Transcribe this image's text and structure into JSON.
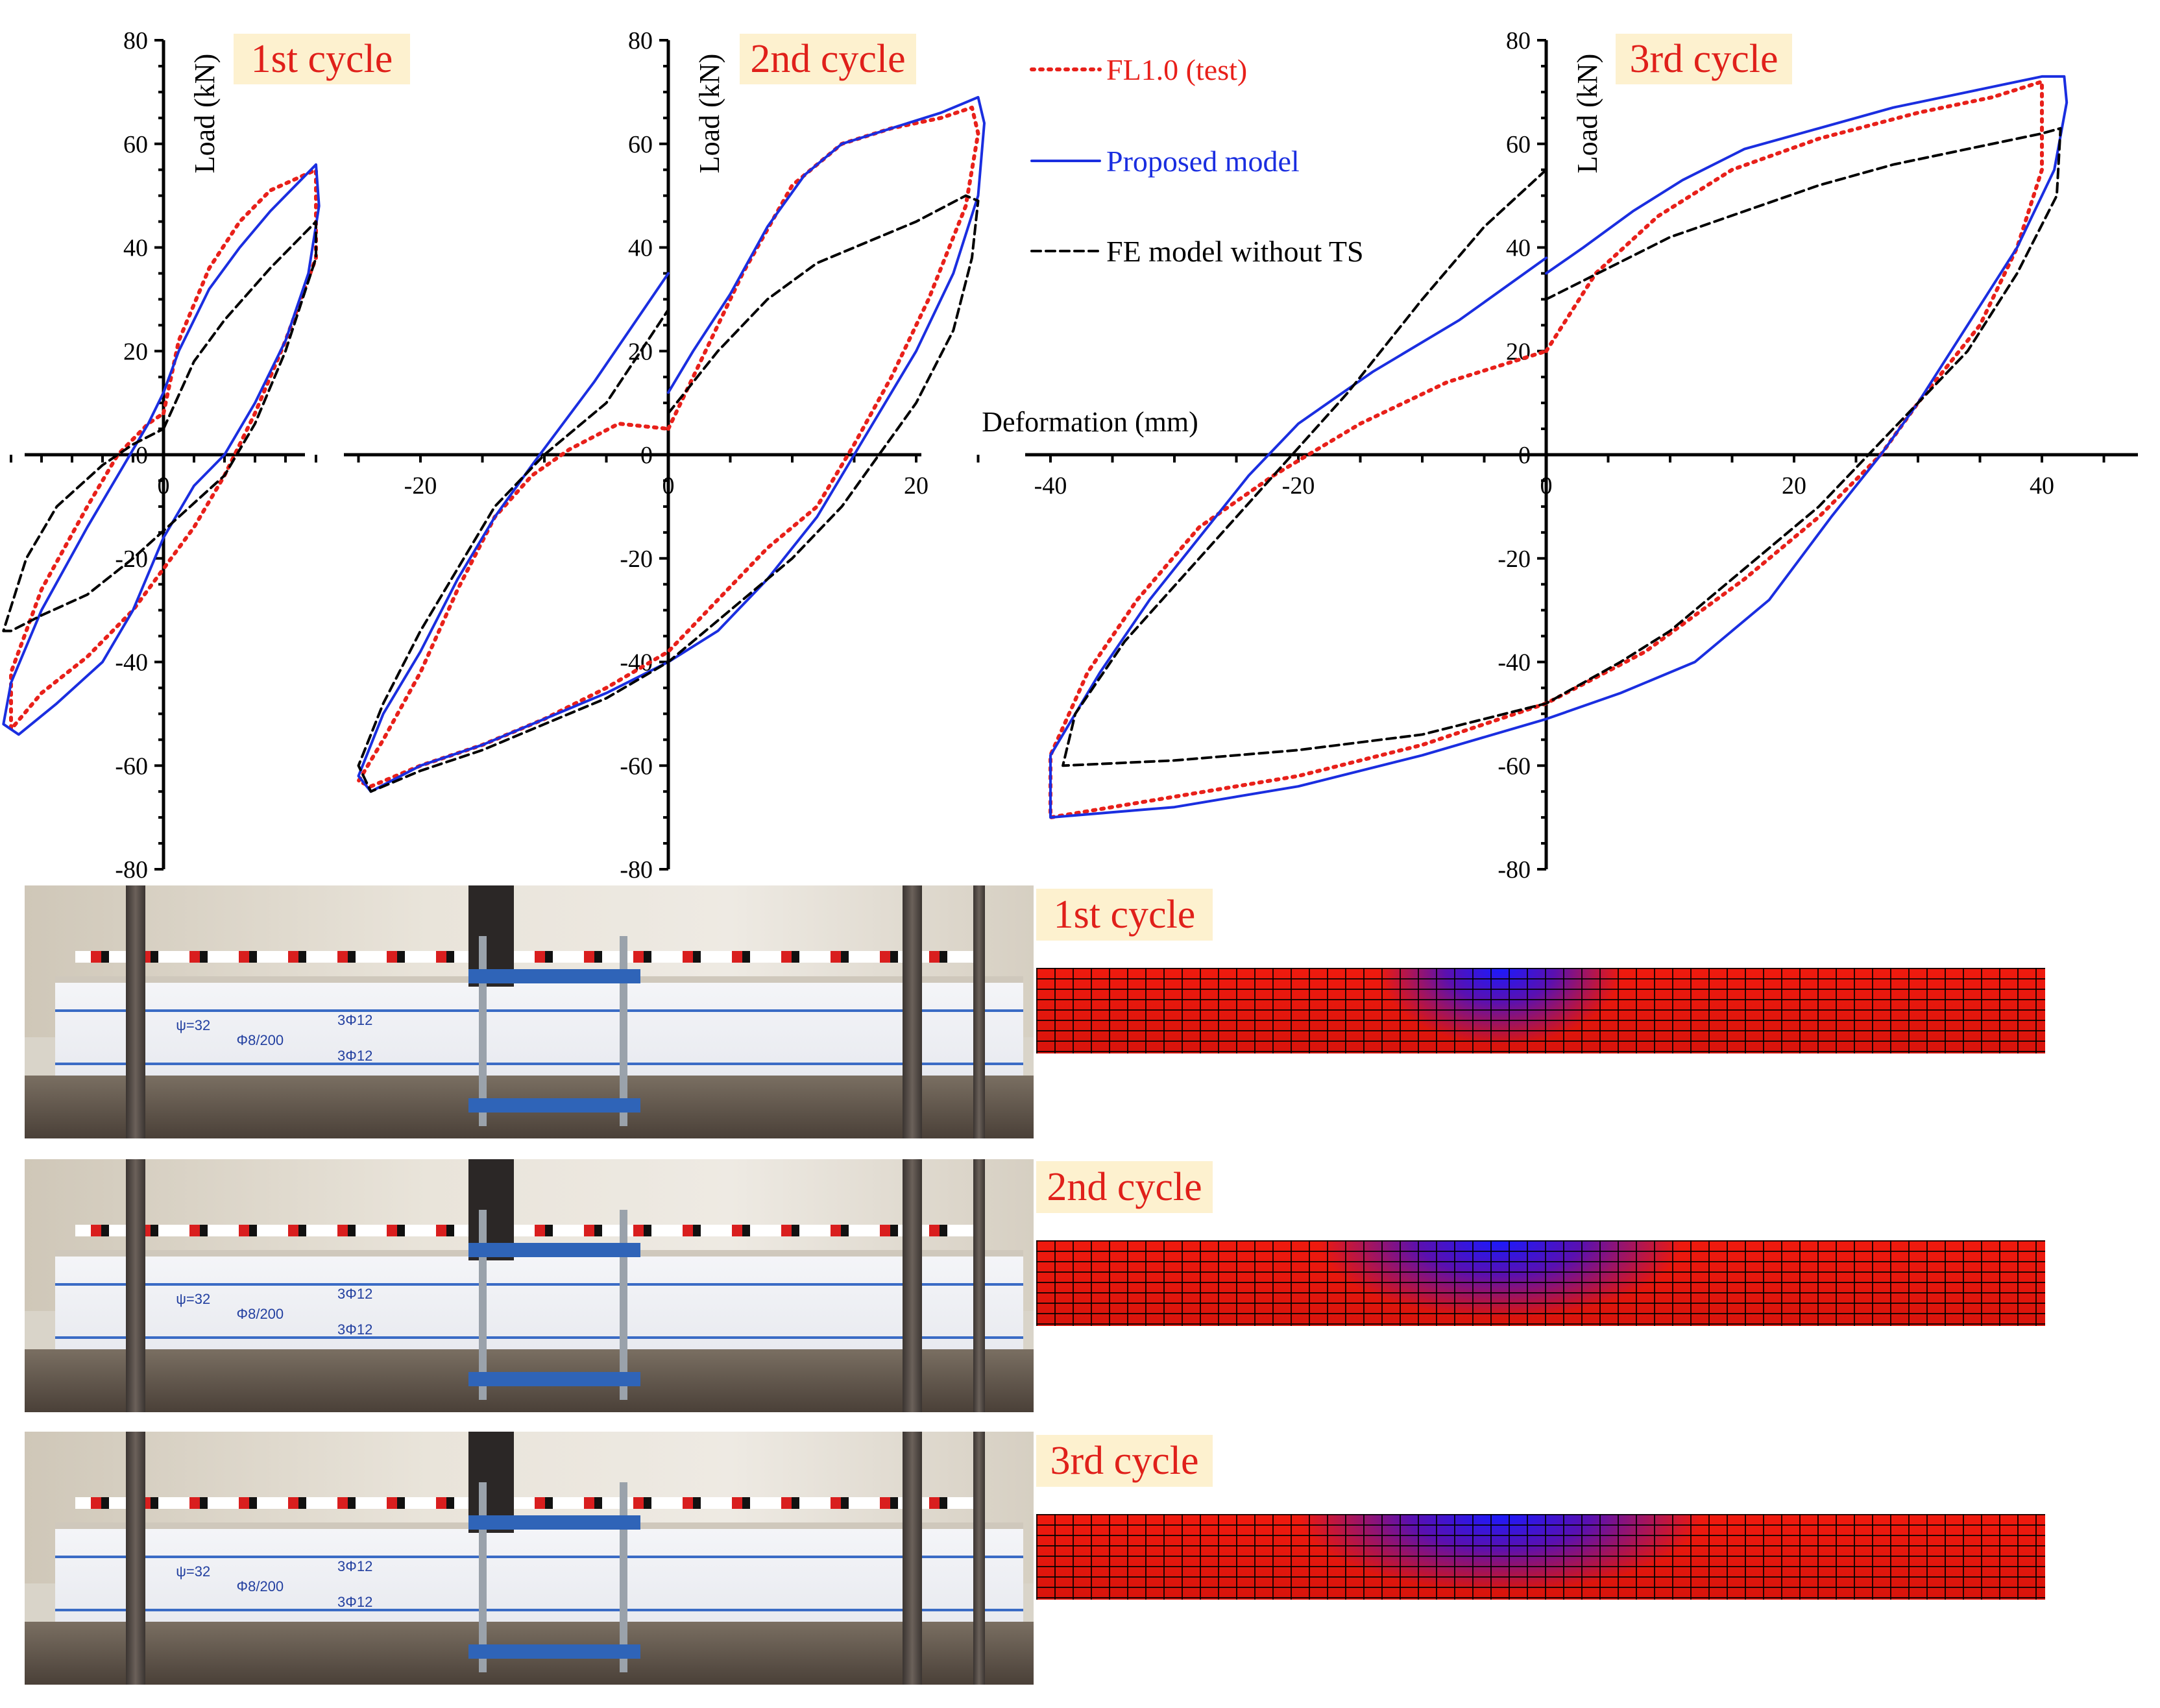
{
  "chart_data": [
    {
      "type": "line",
      "cycle": "1st cycle",
      "xlim": [
        -11,
        11
      ],
      "ylim": [
        -80,
        80
      ],
      "x_ticks": [
        0
      ],
      "y_ticks": [
        -80,
        -60,
        -40,
        -20,
        0,
        20,
        40,
        60,
        80
      ],
      "ylabel": "Load (kN)",
      "xlabel": "",
      "series": [
        {
          "name": "FL1.0 (test)",
          "color": "#e8201a",
          "style": "dotted",
          "points": [
            [
              0,
              8
            ],
            [
              1,
              22
            ],
            [
              3,
              36
            ],
            [
              5,
              45
            ],
            [
              7,
              51
            ],
            [
              10,
              55
            ],
            [
              10,
              38
            ],
            [
              8,
              22
            ],
            [
              6,
              8
            ],
            [
              4,
              -4
            ],
            [
              2,
              -14
            ],
            [
              0,
              -22
            ],
            [
              -2,
              -30
            ],
            [
              -5,
              -39
            ],
            [
              -8,
              -46
            ],
            [
              -10,
              -53
            ],
            [
              -10,
              -42
            ],
            [
              -8,
              -26
            ],
            [
              -5,
              -10
            ],
            [
              -3,
              0
            ],
            [
              -1,
              6
            ],
            [
              0,
              8
            ]
          ]
        },
        {
          "name": "Proposed model",
          "color": "#1a2ee0",
          "style": "solid",
          "points": [
            [
              0,
              12
            ],
            [
              1,
              20
            ],
            [
              3,
              32
            ],
            [
              5,
              40
            ],
            [
              7,
              47
            ],
            [
              9,
              53
            ],
            [
              10,
              56
            ],
            [
              10.2,
              48
            ],
            [
              9.5,
              35
            ],
            [
              8,
              22
            ],
            [
              6,
              10
            ],
            [
              4,
              0
            ],
            [
              2,
              -6
            ],
            [
              0,
              -16
            ],
            [
              -2,
              -30
            ],
            [
              -4,
              -40
            ],
            [
              -7,
              -48
            ],
            [
              -9.5,
              -54
            ],
            [
              -10.5,
              -52
            ],
            [
              -10,
              -44
            ],
            [
              -8,
              -30
            ],
            [
              -5,
              -14
            ],
            [
              -3,
              -4
            ],
            [
              -1,
              6
            ],
            [
              0,
              12
            ]
          ]
        },
        {
          "name": "FE model without TS",
          "color": "#000000",
          "style": "dashed",
          "points": [
            [
              0,
              5
            ],
            [
              2,
              18
            ],
            [
              4,
              26
            ],
            [
              7,
              36
            ],
            [
              9,
              42
            ],
            [
              10,
              45
            ],
            [
              10,
              38
            ],
            [
              8,
              20
            ],
            [
              6,
              6
            ],
            [
              4,
              -4
            ],
            [
              1,
              -12
            ],
            [
              -2,
              -20
            ],
            [
              -5,
              -27
            ],
            [
              -8,
              -31
            ],
            [
              -10,
              -34
            ],
            [
              -10.5,
              -34
            ],
            [
              -9,
              -20
            ],
            [
              -7,
              -10
            ],
            [
              -4,
              -2
            ],
            [
              -2,
              2
            ],
            [
              0,
              5
            ]
          ]
        }
      ]
    },
    {
      "type": "line",
      "cycle": "2nd cycle",
      "xlim": [
        -26,
        27
      ],
      "ylim": [
        -80,
        80
      ],
      "x_ticks": [
        -20,
        0,
        20
      ],
      "y_ticks": [
        -80,
        -60,
        -40,
        -20,
        0,
        20,
        40,
        60,
        80
      ],
      "ylabel": "Load (kN)",
      "xlabel": "",
      "series": [
        {
          "name": "FL1.0 (test)",
          "color": "#e8201a",
          "style": "dotted",
          "points": [
            [
              0,
              5
            ],
            [
              3,
              20
            ],
            [
              6,
              35
            ],
            [
              10,
              52
            ],
            [
              14,
              60
            ],
            [
              18,
              63
            ],
            [
              22,
              65
            ],
            [
              24.5,
              67
            ],
            [
              25,
              62
            ],
            [
              24,
              48
            ],
            [
              21,
              30
            ],
            [
              18,
              15
            ],
            [
              15,
              2
            ],
            [
              12,
              -10
            ],
            [
              8,
              -18
            ],
            [
              4,
              -28
            ],
            [
              0,
              -38
            ],
            [
              -5,
              -45
            ],
            [
              -10,
              -51
            ],
            [
              -15,
              -56
            ],
            [
              -20,
              -60
            ],
            [
              -24,
              -64
            ],
            [
              -25,
              -63
            ],
            [
              -23,
              -55
            ],
            [
              -20,
              -42
            ],
            [
              -17,
              -26
            ],
            [
              -14,
              -12
            ],
            [
              -11,
              -4
            ],
            [
              -8,
              1
            ],
            [
              -4,
              6
            ],
            [
              0,
              5
            ]
          ]
        },
        {
          "name": "Proposed model",
          "color": "#1a2ee0",
          "style": "solid",
          "points": [
            [
              0,
              12
            ],
            [
              2,
              20
            ],
            [
              5,
              31
            ],
            [
              8,
              44
            ],
            [
              11,
              54
            ],
            [
              14,
              60
            ],
            [
              18,
              63
            ],
            [
              22,
              66
            ],
            [
              24,
              68
            ],
            [
              25,
              69
            ],
            [
              25.5,
              64
            ],
            [
              25,
              50
            ],
            [
              23,
              35
            ],
            [
              20,
              20
            ],
            [
              17,
              8
            ],
            [
              15,
              0
            ],
            [
              12,
              -12
            ],
            [
              8,
              -24
            ],
            [
              4,
              -34
            ],
            [
              0,
              -40
            ],
            [
              -5,
              -46
            ],
            [
              -10,
              -51
            ],
            [
              -15,
              -56
            ],
            [
              -20,
              -60
            ],
            [
              -24,
              -65
            ],
            [
              -25,
              -62
            ],
            [
              -23,
              -50
            ],
            [
              -20,
              -38
            ],
            [
              -17,
              -24
            ],
            [
              -14,
              -12
            ],
            [
              -11,
              -2
            ],
            [
              -6,
              14
            ],
            [
              -2,
              28
            ],
            [
              0,
              35
            ]
          ]
        },
        {
          "name": "FE model without TS",
          "color": "#000000",
          "style": "dashed",
          "points": [
            [
              0,
              8
            ],
            [
              4,
              20
            ],
            [
              8,
              30
            ],
            [
              12,
              37
            ],
            [
              16,
              41
            ],
            [
              20,
              45
            ],
            [
              24,
              50
            ],
            [
              25,
              49
            ],
            [
              24.5,
              38
            ],
            [
              23,
              24
            ],
            [
              20,
              10
            ],
            [
              17,
              0
            ],
            [
              14,
              -10
            ],
            [
              10,
              -20
            ],
            [
              5,
              -30
            ],
            [
              0,
              -40
            ],
            [
              -5,
              -47
            ],
            [
              -10,
              -52
            ],
            [
              -15,
              -57
            ],
            [
              -20,
              -61
            ],
            [
              -24,
              -65
            ],
            [
              -25,
              -60
            ],
            [
              -23,
              -48
            ],
            [
              -20,
              -34
            ],
            [
              -17,
              -22
            ],
            [
              -14,
              -10
            ],
            [
              -10,
              0
            ],
            [
              -5,
              10
            ],
            [
              0,
              28
            ]
          ]
        }
      ]
    },
    {
      "type": "line",
      "cycle": "3rd cycle",
      "xlim": [
        -41,
        45
      ],
      "ylim": [
        -80,
        80
      ],
      "x_ticks": [
        -40,
        -20,
        0,
        20,
        40
      ],
      "y_ticks": [
        -80,
        -60,
        -40,
        -20,
        0,
        20,
        40,
        60,
        80
      ],
      "ylabel": "Load (kN)",
      "xlabel": "Deformation (mm)",
      "series": [
        {
          "name": "FL1.0 (test)",
          "color": "#e8201a",
          "style": "dotted",
          "points": [
            [
              0,
              20
            ],
            [
              4,
              35
            ],
            [
              9,
              46
            ],
            [
              15,
              55
            ],
            [
              22,
              61
            ],
            [
              30,
              66
            ],
            [
              36,
              69
            ],
            [
              40,
              72
            ],
            [
              40,
              55
            ],
            [
              38,
              40
            ],
            [
              35,
              25
            ],
            [
              30,
              10
            ],
            [
              27,
              0
            ],
            [
              22,
              -12
            ],
            [
              16,
              -24
            ],
            [
              8,
              -38
            ],
            [
              0,
              -48
            ],
            [
              -10,
              -56
            ],
            [
              -20,
              -62
            ],
            [
              -30,
              -66
            ],
            [
              -40,
              -70
            ],
            [
              -40,
              -58
            ],
            [
              -37,
              -42
            ],
            [
              -33,
              -28
            ],
            [
              -28,
              -14
            ],
            [
              -22,
              -4
            ],
            [
              -15,
              6
            ],
            [
              -8,
              14
            ],
            [
              0,
              20
            ]
          ]
        },
        {
          "name": "Proposed model",
          "color": "#1a2ee0",
          "style": "solid",
          "points": [
            [
              0,
              35
            ],
            [
              3,
              40
            ],
            [
              7,
              47
            ],
            [
              11,
              53
            ],
            [
              16,
              59
            ],
            [
              22,
              63
            ],
            [
              28,
              67
            ],
            [
              34,
              70
            ],
            [
              40,
              73
            ],
            [
              41.8,
              73
            ],
            [
              42,
              68
            ],
            [
              41,
              55
            ],
            [
              38,
              40
            ],
            [
              34,
              25
            ],
            [
              30,
              10
            ],
            [
              27,
              0
            ],
            [
              23,
              -12
            ],
            [
              18,
              -28
            ],
            [
              12,
              -40
            ],
            [
              6,
              -46
            ],
            [
              0,
              -51
            ],
            [
              -10,
              -58
            ],
            [
              -20,
              -64
            ],
            [
              -30,
              -68
            ],
            [
              -40,
              -70
            ],
            [
              -40,
              -58
            ],
            [
              -36,
              -42
            ],
            [
              -32,
              -28
            ],
            [
              -28,
              -16
            ],
            [
              -24,
              -4
            ],
            [
              -20,
              6
            ],
            [
              -14,
              16
            ],
            [
              -7,
              26
            ],
            [
              0,
              38
            ]
          ]
        },
        {
          "name": "FE model without TS",
          "color": "#000000",
          "style": "dashed",
          "points": [
            [
              0,
              30
            ],
            [
              5,
              36
            ],
            [
              10,
              42
            ],
            [
              16,
              47
            ],
            [
              22,
              52
            ],
            [
              28,
              56
            ],
            [
              34,
              59
            ],
            [
              40,
              62
            ],
            [
              41.5,
              63
            ],
            [
              41.2,
              50
            ],
            [
              38,
              35
            ],
            [
              34,
              20
            ],
            [
              28,
              5
            ],
            [
              22,
              -10
            ],
            [
              16,
              -22
            ],
            [
              10,
              -34
            ],
            [
              6,
              -40
            ],
            [
              0,
              -48
            ],
            [
              -10,
              -54
            ],
            [
              -20,
              -57
            ],
            [
              -30,
              -59
            ],
            [
              -39,
              -60
            ],
            [
              -38,
              -50
            ],
            [
              -34,
              -36
            ],
            [
              -28,
              -20
            ],
            [
              -22,
              -4
            ],
            [
              -16,
              12
            ],
            [
              -10,
              30
            ],
            [
              -5,
              44
            ],
            [
              0,
              55
            ]
          ]
        }
      ]
    }
  ],
  "legend": {
    "items": [
      {
        "label": "FL1.0 (test)",
        "color": "#e8201a",
        "style": "dotted"
      },
      {
        "label": "Proposed model",
        "color": "#1a2ee0",
        "style": "solid"
      },
      {
        "label": "FE model without TS",
        "color": "#000000",
        "style": "dashed"
      }
    ]
  },
  "photos": {
    "labels": {
      "shear_a": "ψ=32",
      "stirrup": "Φ8/200",
      "top_bars": "3Φ12",
      "bottom_bars": "3Φ12"
    }
  },
  "fe_panels": [
    {
      "cycle": "1st cycle",
      "spread": 0.12
    },
    {
      "cycle": "2nd cycle",
      "spread": 0.18
    },
    {
      "cycle": "3rd cycle",
      "spread": 0.2
    }
  ],
  "colors": {
    "accent_red": "#e0201a",
    "label_bg": "#fdf1cf",
    "fe_red": "#f01a0e",
    "fe_blue": "#1a1aff"
  }
}
